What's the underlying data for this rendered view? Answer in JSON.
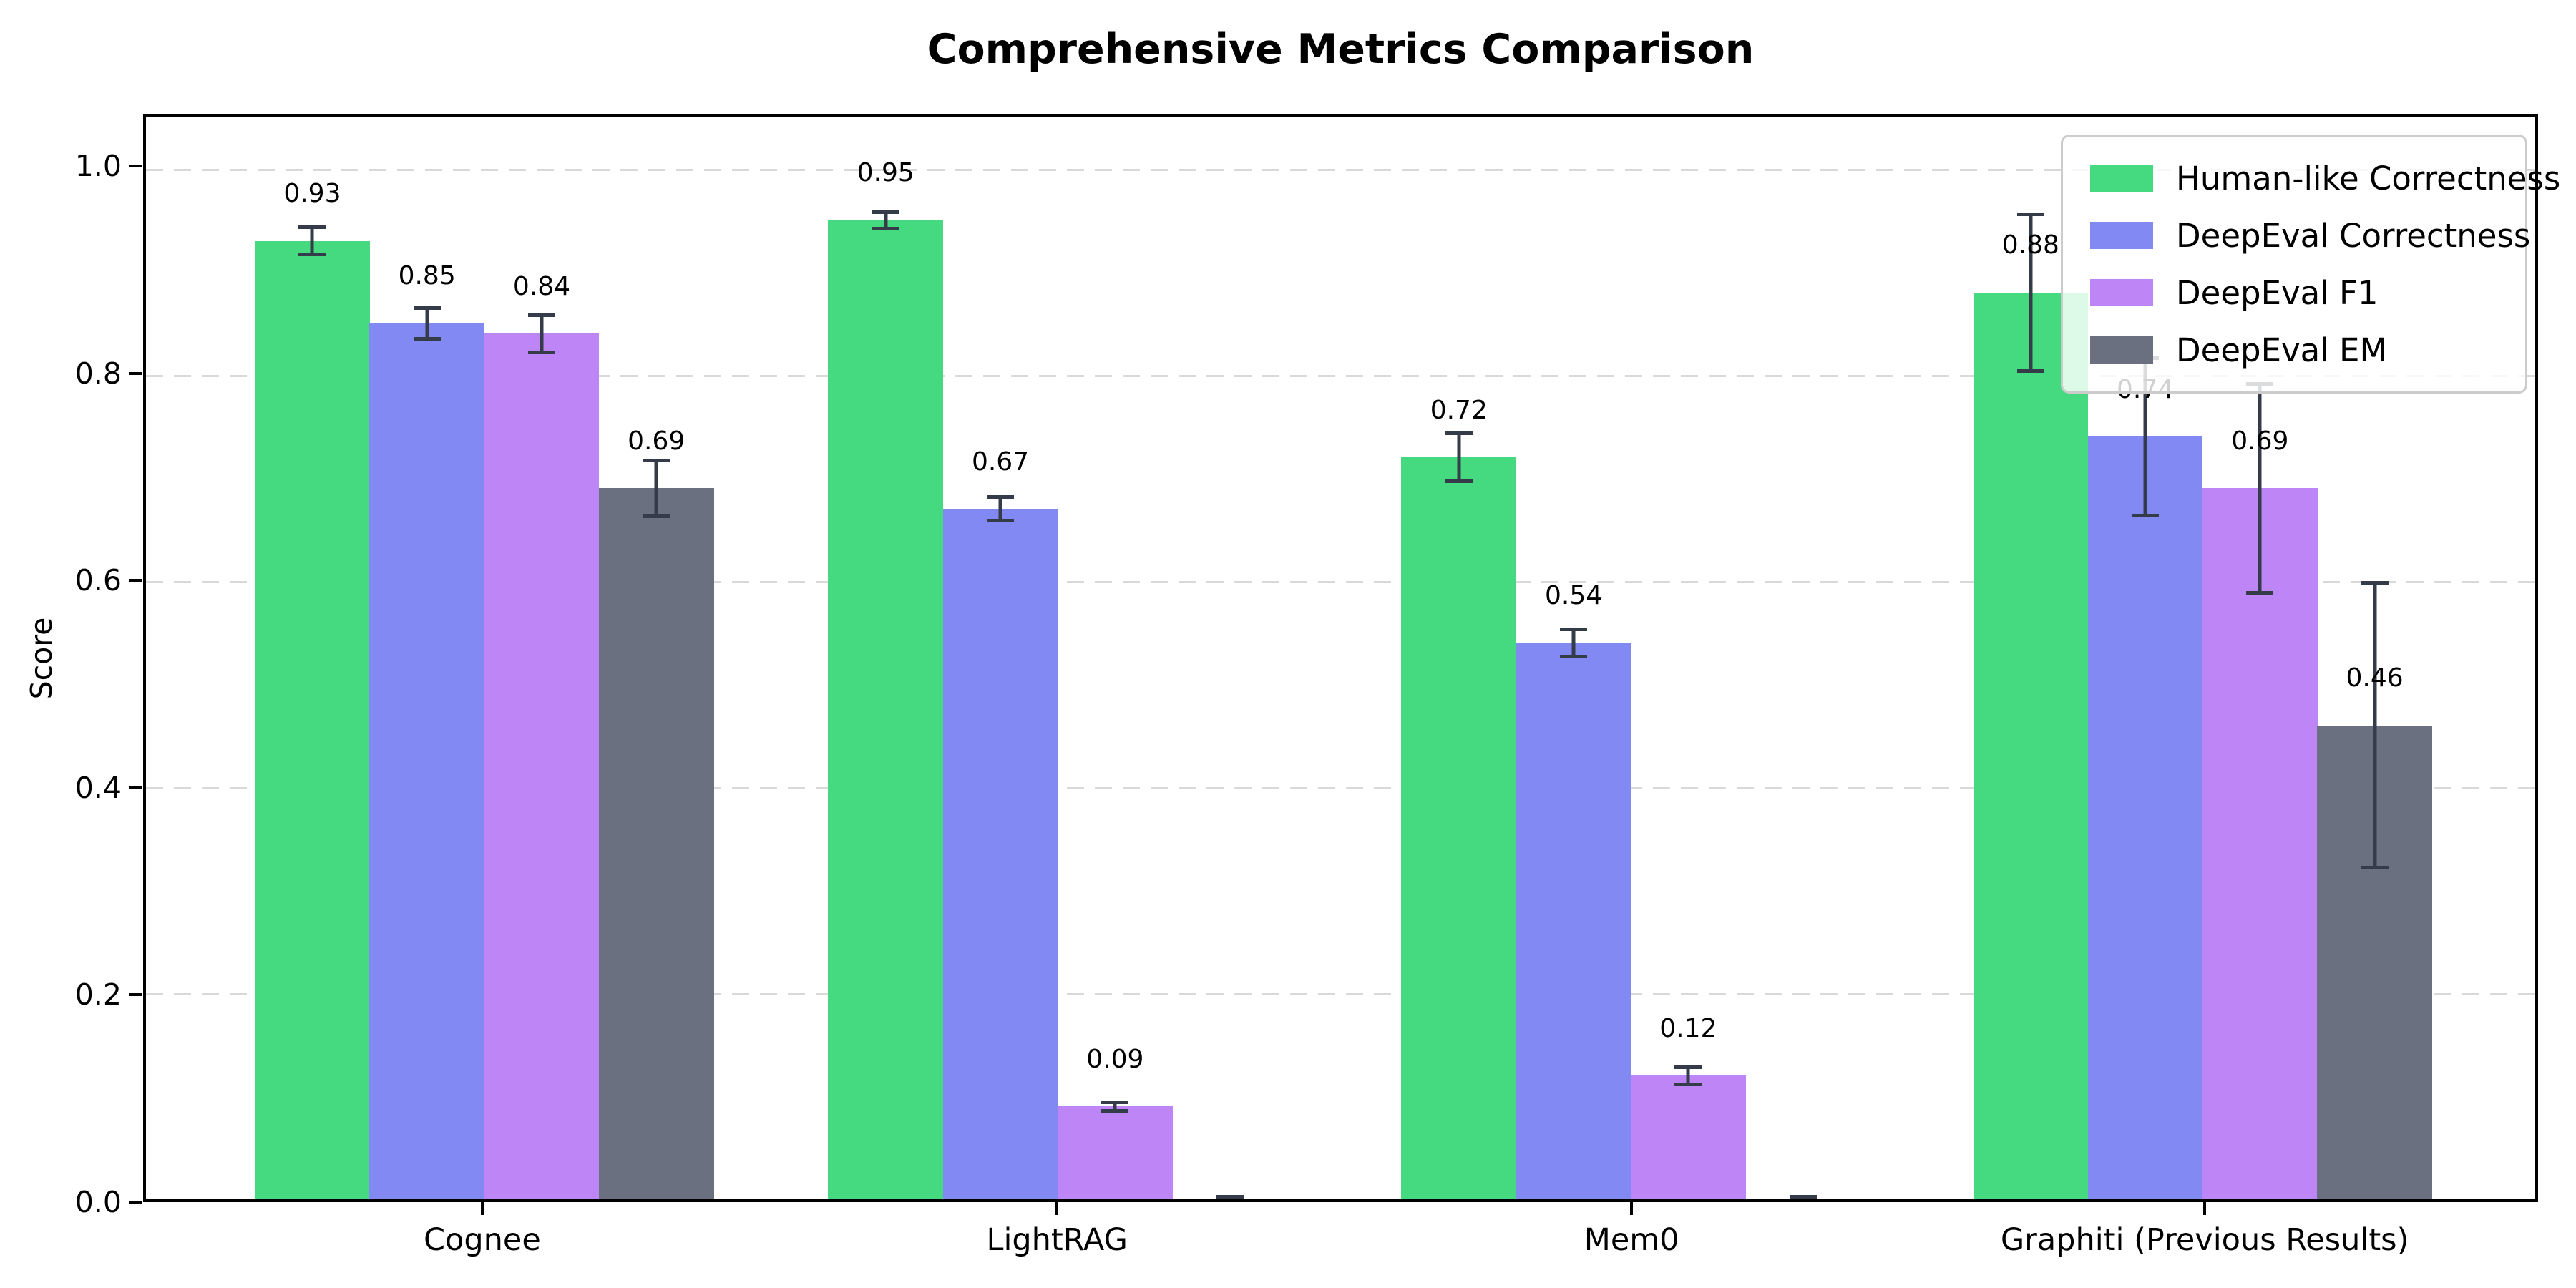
{
  "title": "Comprehensive Metrics Comparison",
  "chart_data": {
    "type": "bar",
    "title": "Comprehensive Metrics Comparison",
    "xlabel": "",
    "ylabel": "Score",
    "ylim": [
      0,
      1.05
    ],
    "yticks": [
      0.0,
      0.2,
      0.4,
      0.6,
      0.8,
      1.0
    ],
    "ytick_labels": [
      "0.0",
      "0.2",
      "0.4",
      "0.6",
      "0.8",
      "1.0"
    ],
    "grid": "horizontal-dashed",
    "legend_position": "upper-right",
    "categories": [
      "Cognee",
      "LightRAG",
      "Mem0",
      "Graphiti (Previous Results)"
    ],
    "series": [
      {
        "name": "Human-like Correctness",
        "color": "#46da80",
        "values": [
          0.93,
          0.95,
          0.72,
          0.88
        ],
        "errors": [
          0.015,
          0.01,
          0.025,
          0.078
        ],
        "labels": [
          "0.93",
          "0.95",
          "0.72",
          "0.88"
        ]
      },
      {
        "name": "DeepEval Correctness",
        "color": "#8289f2",
        "values": [
          0.85,
          0.67,
          0.54,
          0.74
        ],
        "errors": [
          0.017,
          0.013,
          0.015,
          0.078
        ],
        "labels": [
          "0.85",
          "0.67",
          "0.54",
          "0.74"
        ]
      },
      {
        "name": "DeepEval F1",
        "color": "#bd85f5",
        "values": [
          0.84,
          0.09,
          0.12,
          0.69
        ],
        "errors": [
          0.02,
          0.006,
          0.01,
          0.103
        ],
        "labels": [
          "0.84",
          "0.09",
          "0.12",
          "0.69"
        ]
      },
      {
        "name": "DeepEval EM",
        "color": "#6a7080",
        "values": [
          0.69,
          0.0,
          0.0,
          0.46
        ],
        "errors": [
          0.029,
          0.004,
          0.004,
          0.14
        ],
        "labels": [
          "0.69",
          null,
          null,
          "0.46"
        ]
      }
    ],
    "colors": {
      "error_bar": "#353c49",
      "gridline": "#d9d9d9",
      "axis": "#000000",
      "legend_border": "#cccccc"
    }
  }
}
